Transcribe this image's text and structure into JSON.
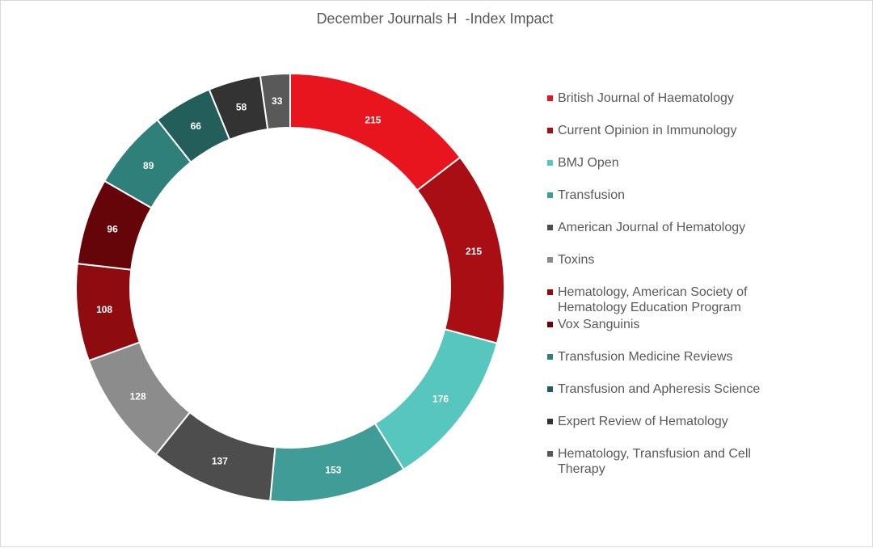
{
  "chart_data": {
    "type": "doughnut",
    "title": "December Journals H  -Index Impact",
    "legend_position": "right",
    "series": [
      {
        "values": [
          215,
          215,
          176,
          153,
          137,
          128,
          108,
          96,
          89,
          66,
          58,
          33
        ]
      }
    ],
    "categories": [
      "British Journal of Haematology",
      "Current Opinion in Immunology",
      "BMJ Open",
      "Transfusion",
      "American Journal of Hematology",
      "Toxins",
      "Hematology, American Society of Hematology Education Program",
      "Vox Sanguinis",
      "Transfusion Medicine Reviews",
      "Transfusion and Apheresis Science",
      "Expert Review of Hematology",
      "Hematology, Transfusion and Cell Therapy"
    ],
    "colors": [
      "#e8141e",
      "#a80e14",
      "#56c6bf",
      "#3f9c97",
      "#4d4d4d",
      "#8c8c8c",
      "#8e0b10",
      "#660509",
      "#2f807a",
      "#245e5a",
      "#333333",
      "#595959"
    ],
    "data_labels": true
  }
}
